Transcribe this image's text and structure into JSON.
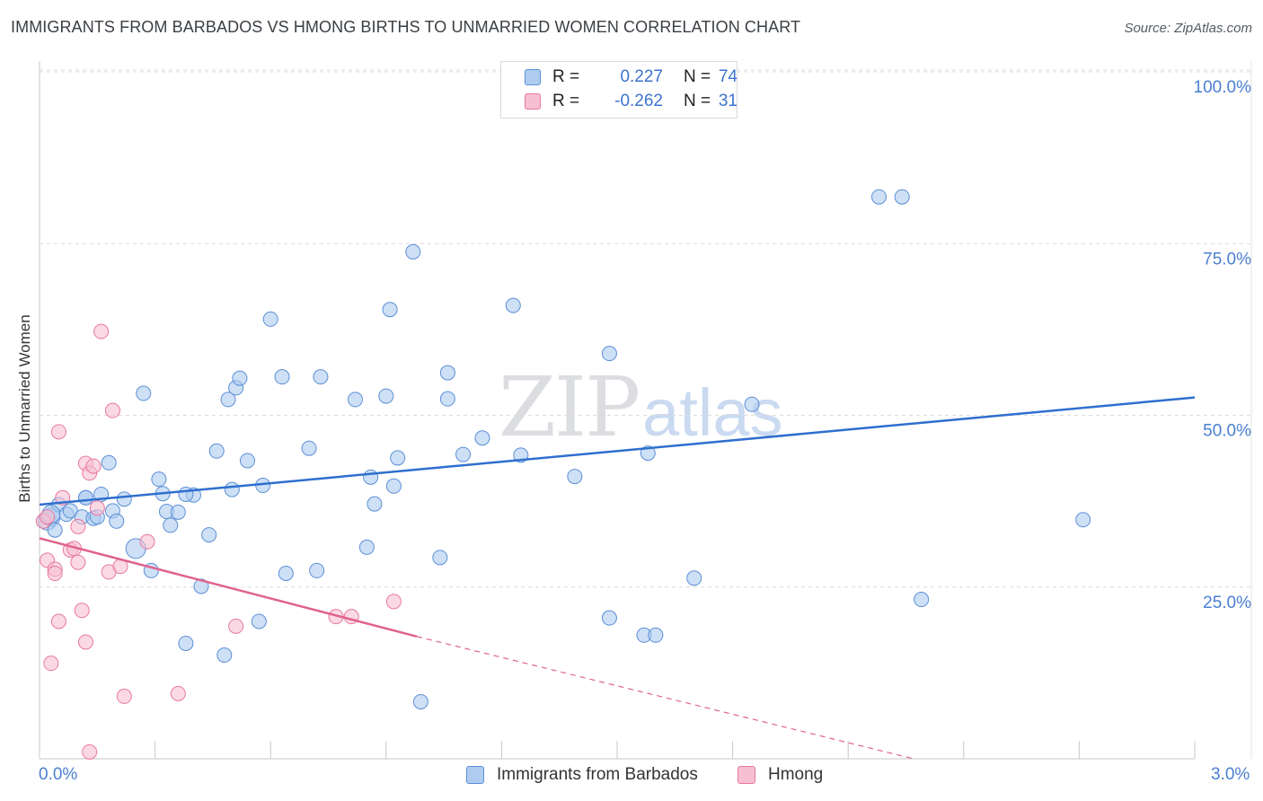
{
  "title": "IMMIGRANTS FROM BARBADOS VS HMONG BIRTHS TO UNMARRIED WOMEN CORRELATION CHART",
  "source": "Source: ZipAtlas.com",
  "watermark": {
    "zip": "ZIP",
    "atlas": "atlas"
  },
  "stats": [
    {
      "r_label": "R =",
      "r_value": "0.227",
      "n_label": "N =",
      "n_value": "74"
    },
    {
      "r_label": "R =",
      "r_value": "-0.262",
      "n_label": "N =",
      "n_value": "31"
    }
  ],
  "colors": {
    "blue_fill": "#aecbf0",
    "blue_stroke": "#5b8fd6",
    "blue_line": "#2f6fce",
    "pink_fill": "#f7bfd2",
    "pink_stroke": "#e8789e",
    "pink_line": "#e0628e",
    "grid": "#dcdcdc",
    "axis_text": "#4a7fd0"
  },
  "chart_data": {
    "type": "scatter",
    "title": "IMMIGRANTS FROM BARBADOS VS HMONG BIRTHS TO UNMARRIED WOMEN CORRELATION CHART",
    "xlabel": "",
    "ylabel": "Births to Unmarried Women",
    "xlim": [
      0,
      3.0
    ],
    "ylim": [
      0,
      100
    ],
    "x_tick_labels": [
      "0.0%",
      "3.0%"
    ],
    "y_tick_labels": [
      "100.0%",
      "75.0%",
      "50.0%",
      "25.0%"
    ],
    "y_ticks": [
      100,
      75,
      50,
      25
    ],
    "grid": true,
    "legend_position": "bottom",
    "series": [
      {
        "name": "Immigrants from Barbados",
        "color": "#aecbf0",
        "trend": {
          "x": [
            0.0,
            3.0
          ],
          "y": [
            37.0,
            52.6
          ]
        },
        "points": [
          [
            0.02,
            34.6
          ],
          [
            0.03,
            35.2
          ],
          [
            0.04,
            33.3
          ],
          [
            0.05,
            37.0
          ],
          [
            0.07,
            35.6
          ],
          [
            0.08,
            36.1
          ],
          [
            0.11,
            35.2
          ],
          [
            0.12,
            38.0
          ],
          [
            0.14,
            35.0
          ],
          [
            0.16,
            38.5
          ],
          [
            0.18,
            43.1
          ],
          [
            0.19,
            36.1
          ],
          [
            0.2,
            34.6
          ],
          [
            0.22,
            37.8
          ],
          [
            0.25,
            30.6
          ],
          [
            0.27,
            53.2
          ],
          [
            0.29,
            27.4
          ],
          [
            0.31,
            40.7
          ],
          [
            0.32,
            38.6
          ],
          [
            0.33,
            36.0
          ],
          [
            0.34,
            34.0
          ],
          [
            0.36,
            35.9
          ],
          [
            0.38,
            16.8
          ],
          [
            0.4,
            38.4
          ],
          [
            0.42,
            25.1
          ],
          [
            0.44,
            32.6
          ],
          [
            0.46,
            44.8
          ],
          [
            0.48,
            15.1
          ],
          [
            0.49,
            52.3
          ],
          [
            0.5,
            39.2
          ],
          [
            0.51,
            54.0
          ],
          [
            0.52,
            55.4
          ],
          [
            0.54,
            43.4
          ],
          [
            0.57,
            20.0
          ],
          [
            0.58,
            39.8
          ],
          [
            0.6,
            64.0
          ],
          [
            0.63,
            55.6
          ],
          [
            0.64,
            27.0
          ],
          [
            0.7,
            45.2
          ],
          [
            0.72,
            27.4
          ],
          [
            0.73,
            55.6
          ],
          [
            0.82,
            52.3
          ],
          [
            0.85,
            30.8
          ],
          [
            0.86,
            41.0
          ],
          [
            0.87,
            37.1
          ],
          [
            0.9,
            52.8
          ],
          [
            0.91,
            65.4
          ],
          [
            0.92,
            39.7
          ],
          [
            0.93,
            43.8
          ],
          [
            0.97,
            73.8
          ],
          [
            0.99,
            8.3
          ],
          [
            1.04,
            29.3
          ],
          [
            1.06,
            52.4
          ],
          [
            1.06,
            56.2
          ],
          [
            1.1,
            44.3
          ],
          [
            1.15,
            46.7
          ],
          [
            1.23,
            66.0
          ],
          [
            1.25,
            44.2
          ],
          [
            1.39,
            41.1
          ],
          [
            1.48,
            59.0
          ],
          [
            1.48,
            20.5
          ],
          [
            1.57,
            18.0
          ],
          [
            1.58,
            44.5
          ],
          [
            1.6,
            18.0
          ],
          [
            1.7,
            26.3
          ],
          [
            1.85,
            51.6
          ],
          [
            2.18,
            81.8
          ],
          [
            2.24,
            81.8
          ],
          [
            2.29,
            23.2
          ],
          [
            2.71,
            34.8
          ],
          [
            0.03,
            35.6
          ],
          [
            0.12,
            38.0
          ],
          [
            0.15,
            35.2
          ],
          [
            0.38,
            38.5
          ]
        ]
      },
      {
        "name": "Hmong",
        "color": "#f7bfd2",
        "trend": {
          "x": [
            0.0,
            0.98
          ],
          "y": [
            32.1,
            17.8
          ]
        },
        "trend_dashed": {
          "x": [
            0.98,
            2.27
          ],
          "y": [
            17.8,
            0.0
          ]
        },
        "points": [
          [
            0.01,
            34.6
          ],
          [
            0.02,
            35.2
          ],
          [
            0.02,
            28.9
          ],
          [
            0.03,
            13.9
          ],
          [
            0.04,
            27.6
          ],
          [
            0.04,
            27.0
          ],
          [
            0.05,
            20.0
          ],
          [
            0.05,
            47.6
          ],
          [
            0.06,
            38.0
          ],
          [
            0.08,
            30.4
          ],
          [
            0.09,
            30.6
          ],
          [
            0.1,
            28.6
          ],
          [
            0.1,
            33.8
          ],
          [
            0.11,
            21.6
          ],
          [
            0.12,
            17.0
          ],
          [
            0.12,
            43.0
          ],
          [
            0.13,
            1.0
          ],
          [
            0.13,
            41.6
          ],
          [
            0.14,
            42.6
          ],
          [
            0.15,
            36.5
          ],
          [
            0.16,
            62.2
          ],
          [
            0.18,
            27.2
          ],
          [
            0.19,
            50.7
          ],
          [
            0.21,
            28.0
          ],
          [
            0.22,
            9.1
          ],
          [
            0.28,
            31.6
          ],
          [
            0.36,
            9.5
          ],
          [
            0.51,
            19.3
          ],
          [
            0.77,
            20.7
          ],
          [
            0.81,
            20.7
          ],
          [
            0.92,
            22.9
          ]
        ]
      }
    ]
  },
  "legend": [
    {
      "label": "Immigrants from Barbados"
    },
    {
      "label": "Hmong"
    }
  ]
}
